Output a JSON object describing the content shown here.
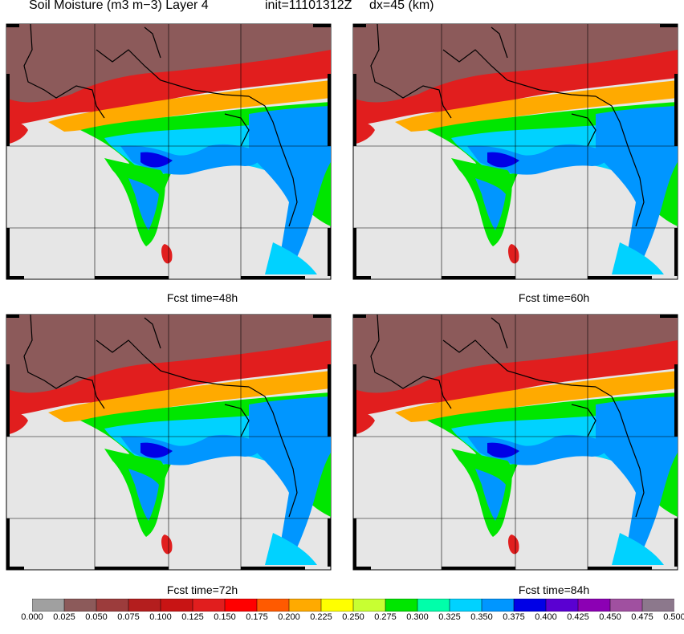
{
  "header": {
    "title": "Soil Moisture (m3 m−3) Layer 4",
    "init": "init=11101312Z",
    "dx": "dx=45 (km)"
  },
  "panels": [
    {
      "id": "p1",
      "caption": ""
    },
    {
      "id": "p2",
      "caption": ""
    },
    {
      "id": "p3",
      "caption": "Fcst time=48h"
    },
    {
      "id": "p4",
      "caption": "Fcst time=60h"
    }
  ],
  "bottom_captions": [
    "Fcst time=72h",
    "Fcst time=84h"
  ],
  "colorbar": {
    "labels": [
      "0.000",
      "0.025",
      "0.050",
      "0.075",
      "0.100",
      "0.125",
      "0.150",
      "0.175",
      "0.200",
      "0.225",
      "0.250",
      "0.275",
      "0.300",
      "0.325",
      "0.350",
      "0.375",
      "0.400",
      "0.425",
      "0.450",
      "0.475",
      "0.500"
    ],
    "colors": [
      "#a0a0a0",
      "#8c5a5a",
      "#9c3c3c",
      "#b41e1e",
      "#c81414",
      "#e11e1e",
      "#ff0000",
      "#ff5a00",
      "#ffaa00",
      "#ffff00",
      "#c8ff32",
      "#00e600",
      "#00ffaa",
      "#00d2ff",
      "#0096ff",
      "#0000e6",
      "#5a00d2",
      "#8c00b4",
      "#a050a0",
      "#8c788c"
    ]
  },
  "map_colors": {
    "ocean": "#e6e6e6",
    "border": "#000000",
    "grid": "#000000"
  }
}
